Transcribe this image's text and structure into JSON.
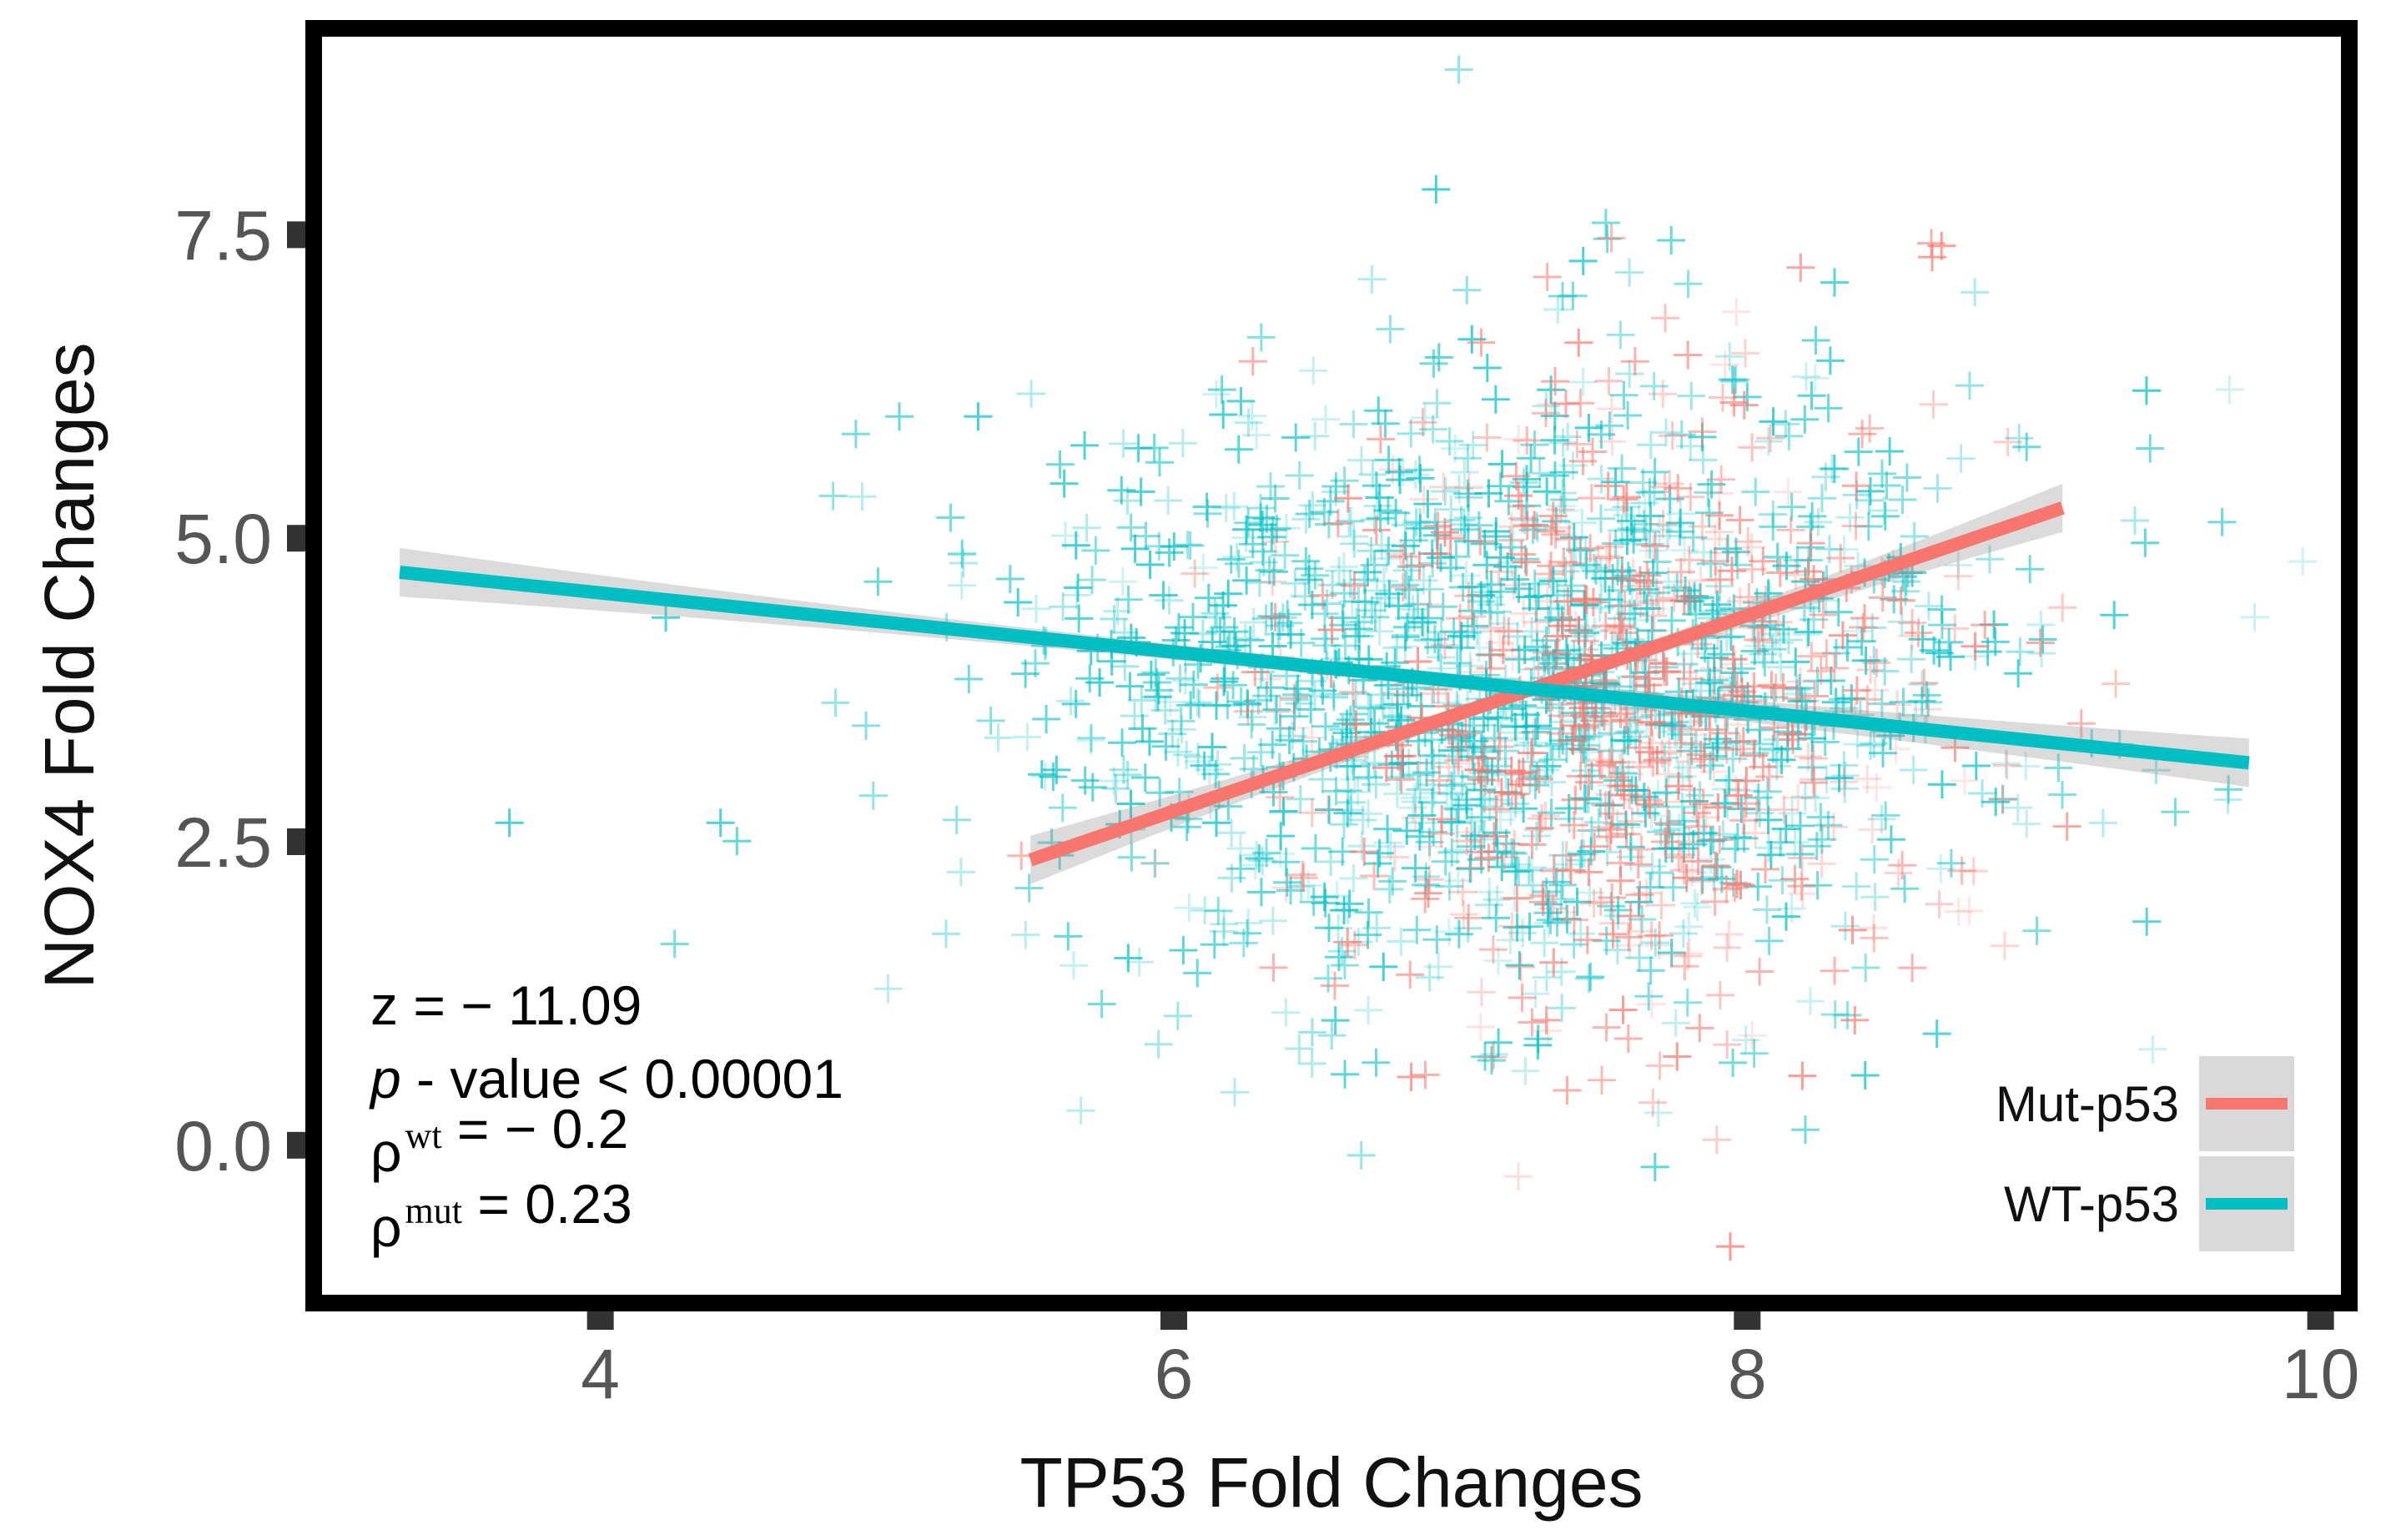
{
  "chart_data": {
    "type": "scatter",
    "title": "",
    "xlabel": "TP53 Fold Changes",
    "ylabel": "NOX4 Fold Changes",
    "xlim": [
      3.0,
      10.1
    ],
    "ylim": [
      -1.3,
      9.2
    ],
    "x_ticks": [
      {
        "value": 4,
        "label": "4"
      },
      {
        "value": 6,
        "label": "6"
      },
      {
        "value": 8,
        "label": "8"
      },
      {
        "value": 10,
        "label": "10"
      }
    ],
    "y_ticks": [
      {
        "value": 0.0,
        "label": "0.0"
      },
      {
        "value": 2.5,
        "label": "2.5"
      },
      {
        "value": 5.0,
        "label": "5.0"
      },
      {
        "value": 7.5,
        "label": "7.5"
      }
    ],
    "grid": false,
    "legend_position": "bottom-right",
    "series": [
      {
        "name": "Mut-p53",
        "color": "#f8766d",
        "marker": "plus",
        "n_points": 600,
        "x_mean": 7.6,
        "x_sd": 0.55,
        "y_mean": 3.7,
        "y_sd": 1.35,
        "fit": {
          "x": [
            5.5,
            9.1
          ],
          "y": [
            2.35,
            5.25
          ]
        }
      },
      {
        "name": "WT-p53",
        "color": "#00bfc4",
        "marker": "plus",
        "n_points": 1500,
        "x_mean": 7.2,
        "x_sd": 0.85,
        "y_mean": 3.8,
        "y_sd": 1.3,
        "fit": {
          "x": [
            3.3,
            9.75
          ],
          "y": [
            4.72,
            3.15
          ]
        }
      }
    ],
    "annotations": [
      {
        "parts": [
          {
            "text": "z = − 11.09"
          }
        ]
      },
      {
        "parts": [
          {
            "text": "p",
            "style": "italic"
          },
          {
            "text": " - value < 0.00001"
          }
        ]
      },
      {
        "parts": [
          {
            "text": "ρ"
          },
          {
            "text": "wt",
            "sup": true
          },
          {
            "text": " = − 0.2"
          }
        ]
      },
      {
        "parts": [
          {
            "text": "ρ"
          },
          {
            "text": "mut",
            "sup": true
          },
          {
            "text": " = 0.23"
          }
        ]
      }
    ]
  }
}
